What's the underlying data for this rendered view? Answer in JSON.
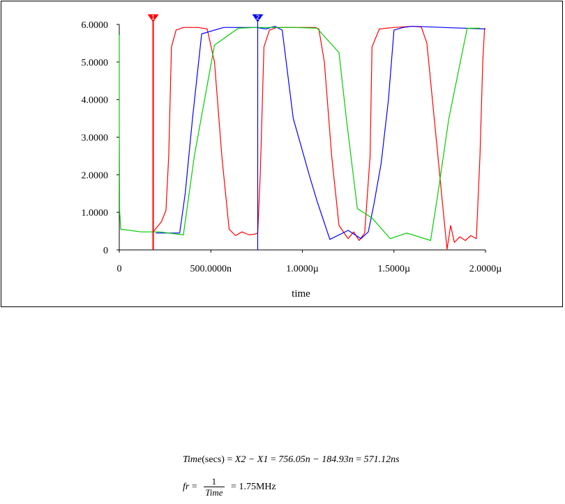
{
  "chart_data": {
    "type": "line",
    "xlabel": "time",
    "ylabel": "",
    "xlim": [
      0,
      2e-06
    ],
    "ylim": [
      0,
      6.0
    ],
    "x_ticks": [
      {
        "value": 0,
        "label": "0"
      },
      {
        "value": 5e-07,
        "label": "500.0000n"
      },
      {
        "value": 1e-06,
        "label": "1.0000µ"
      },
      {
        "value": 1.5e-06,
        "label": "1.5000µ"
      },
      {
        "value": 2e-06,
        "label": "2.0000µ"
      }
    ],
    "y_ticks": [
      {
        "value": 0,
        "label": "0"
      },
      {
        "value": 1,
        "label": "1.0000"
      },
      {
        "value": 2,
        "label": "2.0000"
      },
      {
        "value": 3,
        "label": "3.0000"
      },
      {
        "value": 4,
        "label": "4.0000"
      },
      {
        "value": 5,
        "label": "5.0000"
      },
      {
        "value": 6,
        "label": "6.0000"
      }
    ],
    "grid": false,
    "legend": "none",
    "series": [
      {
        "color": "#ff0000",
        "points": [
          [
            1.85e-07,
            0.48
          ],
          [
            2.3e-07,
            0.75
          ],
          [
            2.55e-07,
            1.05
          ],
          [
            2.7e-07,
            2.5
          ],
          [
            2.85e-07,
            5.4
          ],
          [
            3.1e-07,
            5.85
          ],
          [
            3.5e-07,
            5.92
          ],
          [
            4.3e-07,
            5.92
          ],
          [
            4.8e-07,
            5.88
          ],
          [
            5.2e-07,
            5.0
          ],
          [
            5.6e-07,
            2.5
          ],
          [
            6e-07,
            0.55
          ],
          [
            6.35e-07,
            0.38
          ],
          [
            6.7e-07,
            0.48
          ],
          [
            7.1e-07,
            0.4
          ],
          [
            7.4e-07,
            0.42
          ],
          [
            7.56e-07,
            0.45
          ],
          [
            7.7e-07,
            2.0
          ],
          [
            7.9e-07,
            5.4
          ],
          [
            8.2e-07,
            5.85
          ],
          [
            8.6e-07,
            5.92
          ],
          [
            9.5e-07,
            5.92
          ],
          [
            1.07e-06,
            5.92
          ],
          [
            1.09e-06,
            5.88
          ],
          [
            1.12e-06,
            5.0
          ],
          [
            1.16e-06,
            2.5
          ],
          [
            1.2e-06,
            0.65
          ],
          [
            1.25e-06,
            0.3
          ],
          [
            1.28e-06,
            0.48
          ],
          [
            1.31e-06,
            0.25
          ],
          [
            1.34e-06,
            0.45
          ],
          [
            1.37e-06,
            2.5
          ],
          [
            1.38e-06,
            5.4
          ],
          [
            1.42e-06,
            5.88
          ],
          [
            1.5e-06,
            5.92
          ],
          [
            1.6e-06,
            5.95
          ],
          [
            1.65e-06,
            5.93
          ],
          [
            1.68e-06,
            5.5
          ],
          [
            1.71e-06,
            4.0
          ],
          [
            1.74e-06,
            2.5
          ],
          [
            1.77e-06,
            1.0
          ],
          [
            1.79e-06,
            0.02
          ],
          [
            1.81e-06,
            0.65
          ],
          [
            1.83e-06,
            0.2
          ],
          [
            1.86e-06,
            0.35
          ],
          [
            1.89e-06,
            0.25
          ],
          [
            1.92e-06,
            0.38
          ],
          [
            1.95e-06,
            0.3
          ],
          [
            1.97e-06,
            2.5
          ],
          [
            1.985e-06,
            5.0
          ],
          [
            1.995e-06,
            5.9
          ]
        ]
      },
      {
        "color": "#0000ff",
        "points": [
          [
            2e-07,
            0.45
          ],
          [
            3.3e-07,
            0.45
          ],
          [
            3.6e-07,
            1.5
          ],
          [
            4e-07,
            3.5
          ],
          [
            4.5e-07,
            5.75
          ],
          [
            5.7e-07,
            5.92
          ],
          [
            6.5e-07,
            5.92
          ],
          [
            7.5e-07,
            5.92
          ],
          [
            8e-07,
            5.88
          ],
          [
            8.5e-07,
            5.95
          ],
          [
            8.9e-07,
            5.85
          ],
          [
            9.5e-07,
            3.5
          ],
          [
            1.04e-06,
            1.95
          ],
          [
            1.08e-06,
            1.3
          ],
          [
            1.15e-06,
            0.28
          ],
          [
            1.25e-06,
            0.52
          ],
          [
            1.32e-06,
            0.3
          ],
          [
            1.36e-06,
            0.48
          ],
          [
            1.39e-06,
            1.2
          ],
          [
            1.43e-06,
            2.3
          ],
          [
            1.47e-06,
            4.0
          ],
          [
            1.5e-06,
            5.85
          ],
          [
            1.55e-06,
            5.92
          ],
          [
            1.6e-06,
            5.95
          ],
          [
            2e-06,
            5.88
          ]
        ]
      },
      {
        "color": "#00cc00",
        "points": [
          [
            0,
            5.72
          ],
          [
            0,
            3.5
          ],
          [
            2e-09,
            1.05
          ],
          [
            8e-09,
            0.55
          ],
          [
            1.2e-07,
            0.48
          ],
          [
            2.2e-07,
            0.48
          ],
          [
            3.5e-07,
            0.4
          ],
          [
            4.1e-07,
            2.5
          ],
          [
            5.2e-07,
            5.45
          ],
          [
            6.5e-07,
            5.9
          ],
          [
            7.5e-07,
            5.92
          ],
          [
            8.5e-07,
            5.92
          ],
          [
            9.5e-07,
            5.92
          ],
          [
            1.08e-06,
            5.9
          ],
          [
            1.2e-06,
            5.25
          ],
          [
            1.24e-06,
            3.5
          ],
          [
            1.3e-06,
            1.1
          ],
          [
            1.38e-06,
            0.85
          ],
          [
            1.48e-06,
            0.3
          ],
          [
            1.57e-06,
            0.45
          ],
          [
            1.7e-06,
            0.25
          ],
          [
            1.74e-06,
            1.5
          ],
          [
            1.8e-06,
            3.5
          ],
          [
            1.9e-06,
            5.9
          ],
          [
            1.97e-06,
            5.9
          ]
        ]
      }
    ],
    "cursors": [
      {
        "name": "cursor-1",
        "color": "#ff0000",
        "x": 1.8493e-07,
        "marker": "1"
      },
      {
        "name": "cursor-2",
        "color": "#0000ff",
        "x": 7.5605e-07,
        "marker": "2"
      }
    ]
  },
  "formulas": {
    "line1": {
      "lhs": "Time",
      "lhs_arg": "(secs)",
      "eq1": "X2 − X1",
      "eq2": "756.05n − 184.93n",
      "result": "571.12ns"
    },
    "line2": {
      "lhs": "fr",
      "numerator": "1",
      "denominator": "Time",
      "result": "1.75MHz"
    }
  }
}
